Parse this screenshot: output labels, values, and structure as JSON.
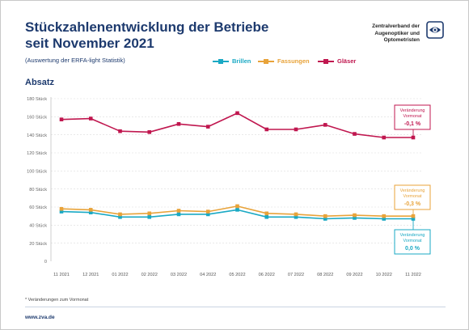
{
  "header": {
    "title": "Stückzahlenentwicklung der Betriebe seit November 2021",
    "subtitle": "(Auswertung der ERFA-light Statistik)",
    "organization": "Zentralverband der Augenoptiker und Optometristen",
    "section_label": "Absatz",
    "logo_icon": "eye-logo-icon"
  },
  "colors": {
    "brillen": "#1aa9c4",
    "fassungen": "#e8a33a",
    "glaeser": "#c0174f",
    "text": "#1d3a6e",
    "grid": "#dcdcdc"
  },
  "chart_data": {
    "type": "line",
    "title": "Absatz",
    "xlabel": "",
    "ylabel": "",
    "x": [
      "11 2021",
      "12 2021",
      "01 2022",
      "02 2022",
      "03 2022",
      "04 2022",
      "05 2022",
      "06 2022",
      "07 2022",
      "08 2022",
      "09 2022",
      "10 2022",
      "11 2022"
    ],
    "yticks": [
      "0",
      "20 Stück",
      "40 Stück",
      "60 Stück",
      "80 Stück",
      "100 Stück",
      "120 Stück",
      "140 Stück",
      "160 Stück",
      "180 Stück"
    ],
    "ylim": [
      0,
      180
    ],
    "grid": true,
    "legend_position": "top-right",
    "series": [
      {
        "key": "brillen",
        "name": "Brillen",
        "values": [
          55,
          54,
          49,
          49,
          52,
          52,
          57,
          49,
          49,
          47,
          48,
          47,
          47
        ]
      },
      {
        "key": "fassungen",
        "name": "Fassungen",
        "values": [
          58,
          57,
          52,
          53,
          56,
          55,
          61,
          53,
          52,
          50,
          51,
          50,
          50
        ]
      },
      {
        "key": "glaeser",
        "name": "Gläser",
        "values": [
          157,
          158,
          144,
          143,
          152,
          149,
          164,
          146,
          146,
          151,
          141,
          137,
          137
        ]
      }
    ],
    "annotations": [
      {
        "key": "glaeser",
        "line1": "Veränderung",
        "line2": "Vormonat",
        "value": "-0,1 %"
      },
      {
        "key": "fassungen",
        "line1": "Veränderung",
        "line2": "Vormonat",
        "value": "-0,3 %"
      },
      {
        "key": "brillen",
        "line1": "Veränderung",
        "line2": "Vormonat",
        "value": "0,0 %"
      }
    ]
  },
  "footer": {
    "footnote": "* Veränderungen zum Vormonat",
    "url": "www.zva.de"
  }
}
